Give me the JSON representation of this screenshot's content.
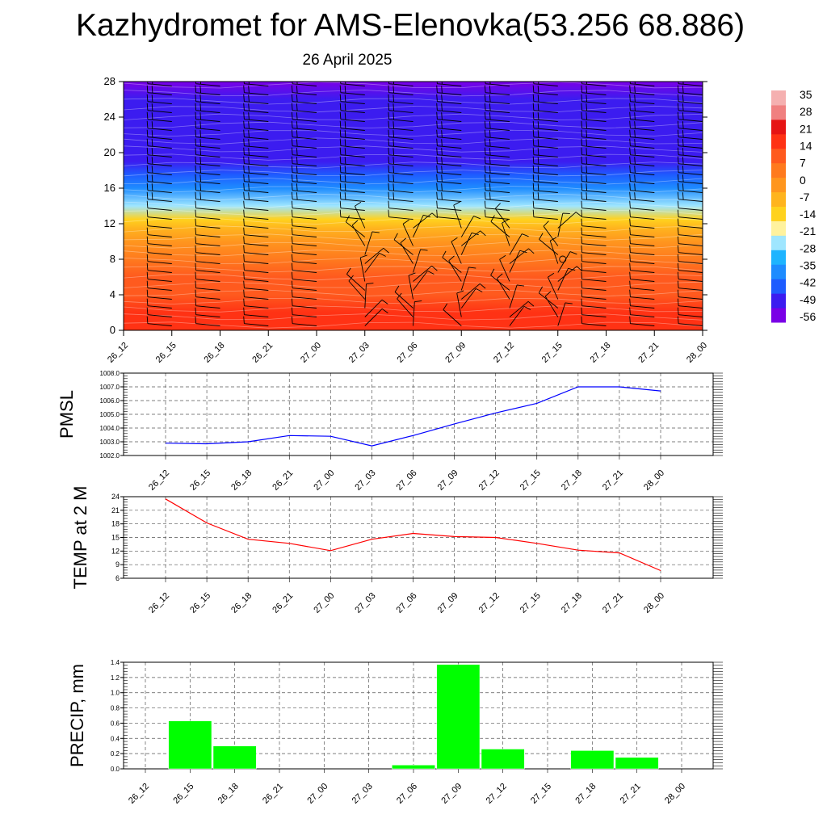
{
  "header": {
    "title": "Kazhydromet for AMS-Elenovka(53.256 68.886)",
    "subtitle": "26 April 2025"
  },
  "time_labels": [
    "26_12",
    "26_15",
    "26_18",
    "26_21",
    "27_00",
    "27_03",
    "27_06",
    "27_09",
    "27_12",
    "27_15",
    "27_18",
    "27_21",
    "28_00"
  ],
  "colors": {
    "pmsl_line": "#0000ff",
    "temp_line": "#ff0000",
    "precip_bar": "#00ff00",
    "grid": "#555555",
    "wind_barb": "#000000"
  },
  "chart_data": [
    {
      "type": "heatmap",
      "name": "upper-air temperature cross-section with wind barbs",
      "x": [
        "26_12",
        "26_15",
        "26_18",
        "26_21",
        "27_00",
        "27_03",
        "27_06",
        "27_09",
        "27_12",
        "27_15",
        "27_18",
        "27_21",
        "28_00"
      ],
      "ylim": [
        0,
        28
      ],
      "yticks": [
        0,
        4,
        8,
        12,
        16,
        20,
        24,
        28
      ],
      "colorbar": {
        "labels": [
          "35",
          "28",
          "21",
          "14",
          "7",
          "0",
          "-7",
          "-14",
          "-21",
          "-28",
          "-35",
          "-42",
          "-49",
          "-56"
        ],
        "min": -63,
        "max": 42,
        "colors": [
          "#7a00e6",
          "#3c1cf0",
          "#1e5cff",
          "#1e8cff",
          "#1eb4ff",
          "#9fe6ff",
          "#fff29e",
          "#ffd21e",
          "#ffb41e",
          "#ff961e",
          "#ff7a1e",
          "#ff5a1e",
          "#ff3214",
          "#e61414",
          "#f08080",
          "#f5b0b0"
        ]
      },
      "temperature_profile_level": [
        0,
        2,
        4,
        6,
        8,
        10,
        11.5,
        12.5,
        14,
        16,
        17.5,
        19,
        20.5,
        22,
        24,
        26,
        28
      ],
      "temperature_profile_value": [
        20,
        17,
        14,
        10,
        6,
        1,
        -4,
        -16,
        -28,
        -40,
        -47,
        -52,
        -55,
        -54,
        -53,
        -56,
        -58
      ]
    },
    {
      "type": "line",
      "ylabel": "PMSL",
      "ylim": [
        1002.0,
        1008.0
      ],
      "yticks": [
        "1002.0",
        "1003.0",
        "1004.0",
        "1005.0",
        "1006.0",
        "1007.0",
        "1008.0"
      ],
      "x": [
        "26_12",
        "26_15",
        "26_18",
        "26_21",
        "27_00",
        "27_03",
        "27_06",
        "27_09",
        "27_12",
        "27_15",
        "27_18",
        "27_21",
        "28_00"
      ],
      "values": [
        1002.9,
        1002.85,
        1003.0,
        1003.45,
        1003.4,
        1002.7,
        1003.45,
        1004.3,
        1005.1,
        1005.8,
        1007.0,
        1007.0,
        1006.7
      ]
    },
    {
      "type": "line",
      "ylabel": "TEMP at 2 M",
      "ylim": [
        6,
        24
      ],
      "yticks": [
        "6",
        "9",
        "12",
        "15",
        "18",
        "21",
        "24"
      ],
      "x": [
        "26_12",
        "26_15",
        "26_18",
        "26_21",
        "27_00",
        "27_03",
        "27_06",
        "27_09",
        "27_12",
        "27_15",
        "27_18",
        "27_21",
        "28_00"
      ],
      "values": [
        23.5,
        18.2,
        14.6,
        13.7,
        12.1,
        14.6,
        15.9,
        15.2,
        15.0,
        13.7,
        12.2,
        11.6,
        7.7
      ]
    },
    {
      "type": "bar",
      "ylabel": "PRECIP, mm",
      "ylim": [
        0.0,
        1.4
      ],
      "yticks": [
        "0.0",
        "0.2",
        "0.4",
        "0.6",
        "0.8",
        "1.0",
        "1.2",
        "1.4"
      ],
      "categories": [
        "26_12",
        "26_15",
        "26_18",
        "26_21",
        "27_00",
        "27_03",
        "27_06",
        "27_09",
        "27_12",
        "27_15",
        "27_18",
        "27_21",
        "28_00"
      ],
      "values": [
        0,
        0.63,
        0.3,
        0,
        0,
        0,
        0.05,
        1.37,
        0.26,
        0,
        0.24,
        0.15,
        0
      ]
    }
  ]
}
